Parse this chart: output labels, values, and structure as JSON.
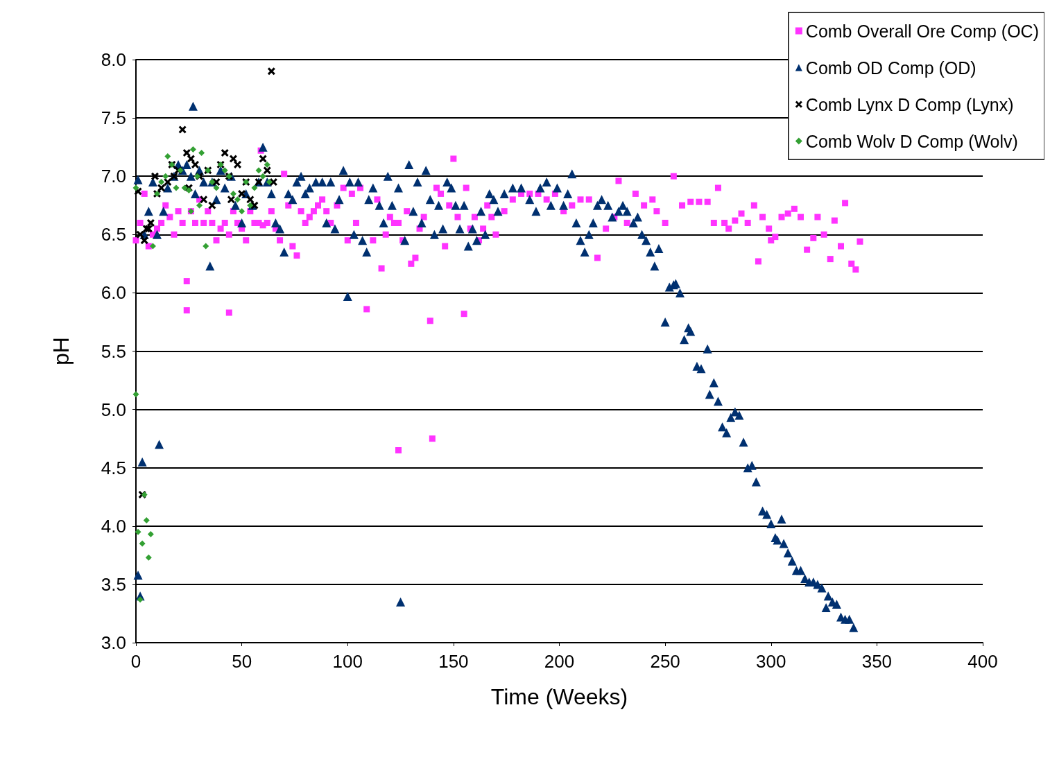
{
  "chart_data": {
    "type": "scatter",
    "xlabel": "Time (Weeks)",
    "ylabel": "pH",
    "xlim": [
      0,
      400
    ],
    "xticks": [
      0,
      50,
      100,
      150,
      200,
      250,
      300,
      350,
      400
    ],
    "ylim": [
      3,
      8
    ],
    "yticks": [
      {
        "value": 3,
        "label": "3.0"
      },
      {
        "value": 3.5,
        "label": "3.5"
      },
      {
        "value": 4,
        "label": "4.0"
      },
      {
        "value": 4.5,
        "label": "4.5"
      },
      {
        "value": 5,
        "label": "5.0"
      },
      {
        "value": 5.5,
        "label": "5.5"
      },
      {
        "value": 6,
        "label": "6.0"
      },
      {
        "value": 6.5,
        "label": "6.5"
      },
      {
        "value": 7,
        "label": "7.0"
      },
      {
        "value": 7.5,
        "label": "7.5"
      },
      {
        "value": 8,
        "label": "8.0"
      }
    ],
    "grid": "y",
    "legend": "top right",
    "series": [
      {
        "name": "Comb Overall Ore Comp (OC)",
        "color": "#ff33ff",
        "marker": "square",
        "x": [
          0,
          2,
          4,
          6,
          8,
          10,
          12,
          14,
          16,
          18,
          20,
          22,
          24,
          24,
          26,
          28,
          30,
          32,
          34,
          36,
          38,
          40,
          42,
          44,
          44,
          46,
          48,
          50,
          52,
          54,
          56,
          58,
          59,
          60,
          62,
          64,
          66,
          68,
          70,
          72,
          74,
          76,
          78,
          80,
          82,
          84,
          86,
          88,
          90,
          92,
          95,
          98,
          100,
          102,
          104,
          106,
          109,
          112,
          114,
          116,
          118,
          120,
          122,
          124,
          124,
          126,
          128,
          130,
          132,
          134,
          136,
          139,
          140,
          142,
          144,
          146,
          148,
          150,
          152,
          155,
          156,
          158,
          160,
          162,
          164,
          166,
          168,
          170,
          174,
          178,
          182,
          186,
          190,
          194,
          198,
          202,
          206,
          210,
          214,
          218,
          222,
          226,
          228,
          232,
          236,
          240,
          244,
          246,
          250,
          254,
          258,
          262,
          266,
          270,
          273,
          275,
          278,
          280,
          283,
          286,
          289,
          292,
          294,
          296,
          299,
          300,
          302,
          305,
          308,
          311,
          314,
          317,
          320,
          322,
          325,
          328,
          330,
          333,
          335,
          338,
          340,
          342
        ],
        "values": [
          6.45,
          6.6,
          6.85,
          6.4,
          6.5,
          6.55,
          6.6,
          6.75,
          6.65,
          6.5,
          6.7,
          6.6,
          6.1,
          5.85,
          6.7,
          6.6,
          6.8,
          6.6,
          6.7,
          6.6,
          6.45,
          6.55,
          6.6,
          5.83,
          6.5,
          6.7,
          6.6,
          6.55,
          6.45,
          6.7,
          6.6,
          6.6,
          7.22,
          6.58,
          6.6,
          6.7,
          6.55,
          6.45,
          7.02,
          6.75,
          6.4,
          6.32,
          6.7,
          6.6,
          6.65,
          6.7,
          6.75,
          6.8,
          6.7,
          6.6,
          6.75,
          6.9,
          6.45,
          6.85,
          6.6,
          6.9,
          5.86,
          6.45,
          6.8,
          6.21,
          6.5,
          6.65,
          6.6,
          4.65,
          6.6,
          6.45,
          6.7,
          6.25,
          6.3,
          6.55,
          6.65,
          5.76,
          4.75,
          6.9,
          6.85,
          6.4,
          6.75,
          7.15,
          6.65,
          5.82,
          6.9,
          6.55,
          6.65,
          6.45,
          6.55,
          6.75,
          6.65,
          6.5,
          6.7,
          6.8,
          6.85,
          6.85,
          6.85,
          6.8,
          6.85,
          6.7,
          6.75,
          6.8,
          6.8,
          6.3,
          6.55,
          6.65,
          6.96,
          6.6,
          6.85,
          6.75,
          6.8,
          6.7,
          6.6,
          7.0,
          6.75,
          6.78,
          6.78,
          6.78,
          6.6,
          6.9,
          6.6,
          6.55,
          6.62,
          6.68,
          6.6,
          6.75,
          6.27,
          6.65,
          6.55,
          6.45,
          6.48,
          6.65,
          6.68,
          6.72,
          6.65,
          6.37,
          6.47,
          6.65,
          6.5,
          6.29,
          6.62,
          6.4,
          6.77,
          6.25,
          6.2,
          6.44
        ]
      },
      {
        "name": "Comb OD Comp (OD)",
        "color": "#003070",
        "marker": "triangle",
        "x": [
          1,
          1,
          2,
          3,
          4,
          6,
          8,
          10,
          11,
          13,
          15,
          18,
          20,
          22,
          24,
          26,
          27,
          28,
          30,
          32,
          35,
          36,
          38,
          40,
          42,
          45,
          47,
          50,
          52,
          55,
          58,
          60,
          62,
          64,
          66,
          68,
          70,
          72,
          74,
          76,
          78,
          80,
          82,
          85,
          88,
          90,
          92,
          94,
          96,
          98,
          100,
          101,
          103,
          105,
          107,
          109,
          110,
          112,
          115,
          117,
          119,
          121,
          124,
          125,
          127,
          129,
          131,
          133,
          135,
          137,
          139,
          141,
          143,
          145,
          147,
          149,
          151,
          153,
          155,
          157,
          159,
          161,
          163,
          165,
          167,
          169,
          171,
          174,
          178,
          182,
          186,
          189,
          191,
          194,
          196,
          199,
          202,
          204,
          206,
          208,
          210,
          212,
          214,
          216,
          218,
          220,
          223,
          225,
          228,
          230,
          232,
          235,
          237,
          239,
          241,
          243,
          245,
          247,
          250,
          252,
          254,
          255,
          257,
          259,
          261,
          262,
          265,
          267,
          270,
          271,
          273,
          275,
          277,
          279,
          281,
          283,
          285,
          287,
          289,
          291,
          293,
          296,
          298,
          300,
          302,
          303,
          305,
          306,
          308,
          310,
          312,
          314,
          316,
          318,
          320,
          322,
          324,
          326,
          327,
          329,
          331,
          333,
          335,
          337,
          339
        ],
        "values": [
          6.97,
          3.58,
          3.4,
          4.55,
          6.5,
          6.7,
          6.95,
          6.5,
          4.7,
          6.7,
          6.9,
          7.0,
          7.1,
          7.05,
          7.1,
          7.0,
          7.6,
          6.85,
          7.05,
          6.95,
          6.23,
          6.95,
          6.8,
          7.05,
          6.9,
          7.0,
          6.75,
          6.6,
          6.85,
          6.75,
          6.95,
          7.25,
          6.95,
          6.85,
          6.6,
          6.55,
          6.35,
          6.85,
          6.8,
          6.95,
          7.0,
          6.85,
          6.9,
          6.95,
          6.95,
          6.6,
          6.95,
          6.55,
          6.8,
          7.05,
          5.97,
          6.95,
          6.5,
          6.95,
          6.45,
          6.35,
          6.8,
          6.9,
          6.75,
          6.6,
          7.0,
          6.75,
          6.9,
          3.35,
          6.45,
          7.1,
          6.7,
          6.95,
          6.6,
          7.05,
          6.8,
          6.5,
          6.75,
          6.55,
          6.95,
          6.9,
          6.75,
          6.55,
          6.75,
          6.4,
          6.55,
          6.45,
          6.7,
          6.5,
          6.85,
          6.8,
          6.7,
          6.85,
          6.9,
          6.9,
          6.8,
          6.7,
          6.9,
          6.95,
          6.75,
          6.9,
          6.75,
          6.85,
          7.02,
          6.6,
          6.45,
          6.35,
          6.5,
          6.6,
          6.75,
          6.8,
          6.75,
          6.65,
          6.7,
          6.75,
          6.7,
          6.6,
          6.65,
          6.5,
          6.45,
          6.35,
          6.23,
          6.38,
          5.75,
          6.05,
          6.07,
          6.08,
          6.0,
          5.6,
          5.7,
          5.67,
          5.37,
          5.35,
          5.52,
          5.13,
          5.23,
          5.07,
          4.85,
          4.8,
          4.93,
          4.98,
          4.95,
          4.72,
          4.5,
          4.52,
          4.38,
          4.13,
          4.1,
          4.02,
          3.9,
          3.88,
          4.06,
          3.85,
          3.77,
          3.7,
          3.62,
          3.62,
          3.55,
          3.52,
          3.52,
          3.5,
          3.47,
          3.3,
          3.4,
          3.35,
          3.33,
          3.22,
          3.2,
          3.2,
          3.13
        ]
      },
      {
        "name": "Comb Lynx D Comp (Lynx)",
        "color": "#000000",
        "marker": "cross",
        "x": [
          1,
          2,
          3,
          4,
          5,
          6,
          7,
          9,
          10,
          12,
          15,
          17,
          18,
          20,
          22,
          24,
          25,
          26,
          28,
          30,
          32,
          34,
          36,
          38,
          40,
          42,
          44,
          45,
          46,
          48,
          50,
          52,
          54,
          56,
          58,
          60,
          62,
          64,
          65
        ],
        "values": [
          6.87,
          6.5,
          4.27,
          6.45,
          6.55,
          6.55,
          6.6,
          7.0,
          6.85,
          6.9,
          6.95,
          7.1,
          7.0,
          7.05,
          7.4,
          7.2,
          6.9,
          7.15,
          7.1,
          7.0,
          6.8,
          7.05,
          6.75,
          6.95,
          7.1,
          7.2,
          7.0,
          6.8,
          7.15,
          7.1,
          6.85,
          6.95,
          6.8,
          6.75,
          6.95,
          7.15,
          7.05,
          7.9,
          6.95
        ]
      },
      {
        "name": "Comb Wolv D Comp (Wolv)",
        "color": "#33a033",
        "marker": "diamond",
        "x": [
          0,
          0,
          1,
          2,
          3,
          4,
          5,
          6,
          7,
          8,
          10,
          12,
          14,
          15,
          17,
          19,
          21,
          23,
          25,
          26,
          27,
          29,
          30,
          31,
          33,
          34,
          36,
          38,
          40,
          42,
          44,
          46,
          48,
          50,
          52,
          54,
          56,
          58,
          60,
          62,
          63
        ],
        "values": [
          5.13,
          6.9,
          3.95,
          3.37,
          3.85,
          4.27,
          4.05,
          3.73,
          3.93,
          6.4,
          6.85,
          6.95,
          7.0,
          7.17,
          7.1,
          6.9,
          7.05,
          6.9,
          6.88,
          6.7,
          7.23,
          7.0,
          6.75,
          7.2,
          6.4,
          7.05,
          6.95,
          6.9,
          7.1,
          7.05,
          7.0,
          6.85,
          6.8,
          6.7,
          6.95,
          6.75,
          6.9,
          7.05,
          7.0,
          7.1,
          6.95
        ]
      }
    ]
  }
}
